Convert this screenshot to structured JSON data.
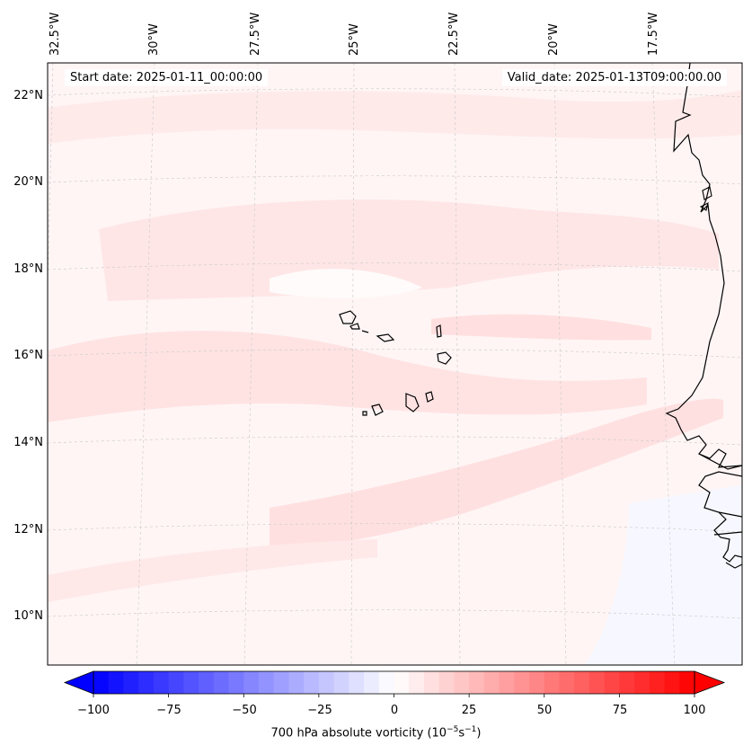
{
  "header": {
    "start_date": "Start date: 2025-01-11_00:00:00",
    "valid_date": "Valid_date: 2025-01-13T09:00:00.00"
  },
  "map": {
    "variable": "700 hPa absolute vorticity",
    "extent_lon": [
      -33.0,
      -16.0
    ],
    "extent_lat": [
      8.8,
      22.8
    ],
    "lon_ticks": [
      "32.5°W",
      "30°W",
      "27.5°W",
      "25°W",
      "22.5°W",
      "20°W",
      "17.5°W"
    ],
    "lat_ticks": [
      "22°N",
      "20°N",
      "18°N",
      "16°N",
      "14°N",
      "12°N",
      "10°N"
    ],
    "gridlines": true,
    "coastline_color": "#000000",
    "features": [
      "Cape Verde islands",
      "West African coast (Mauritania, Senegal, Gambia, Guinea-Bissau)"
    ]
  },
  "colorbar": {
    "min": -100,
    "max": 100,
    "tick_labels": [
      "−100",
      "−75",
      "−50",
      "−25",
      "0",
      "25",
      "50",
      "75",
      "100"
    ],
    "label_main": "700 hPa absolute vorticity (10",
    "label_exp1": "−5",
    "label_mid": "s",
    "label_exp2": "−1",
    "label_end": ")",
    "colormap": "bwr",
    "extend": "both"
  }
}
